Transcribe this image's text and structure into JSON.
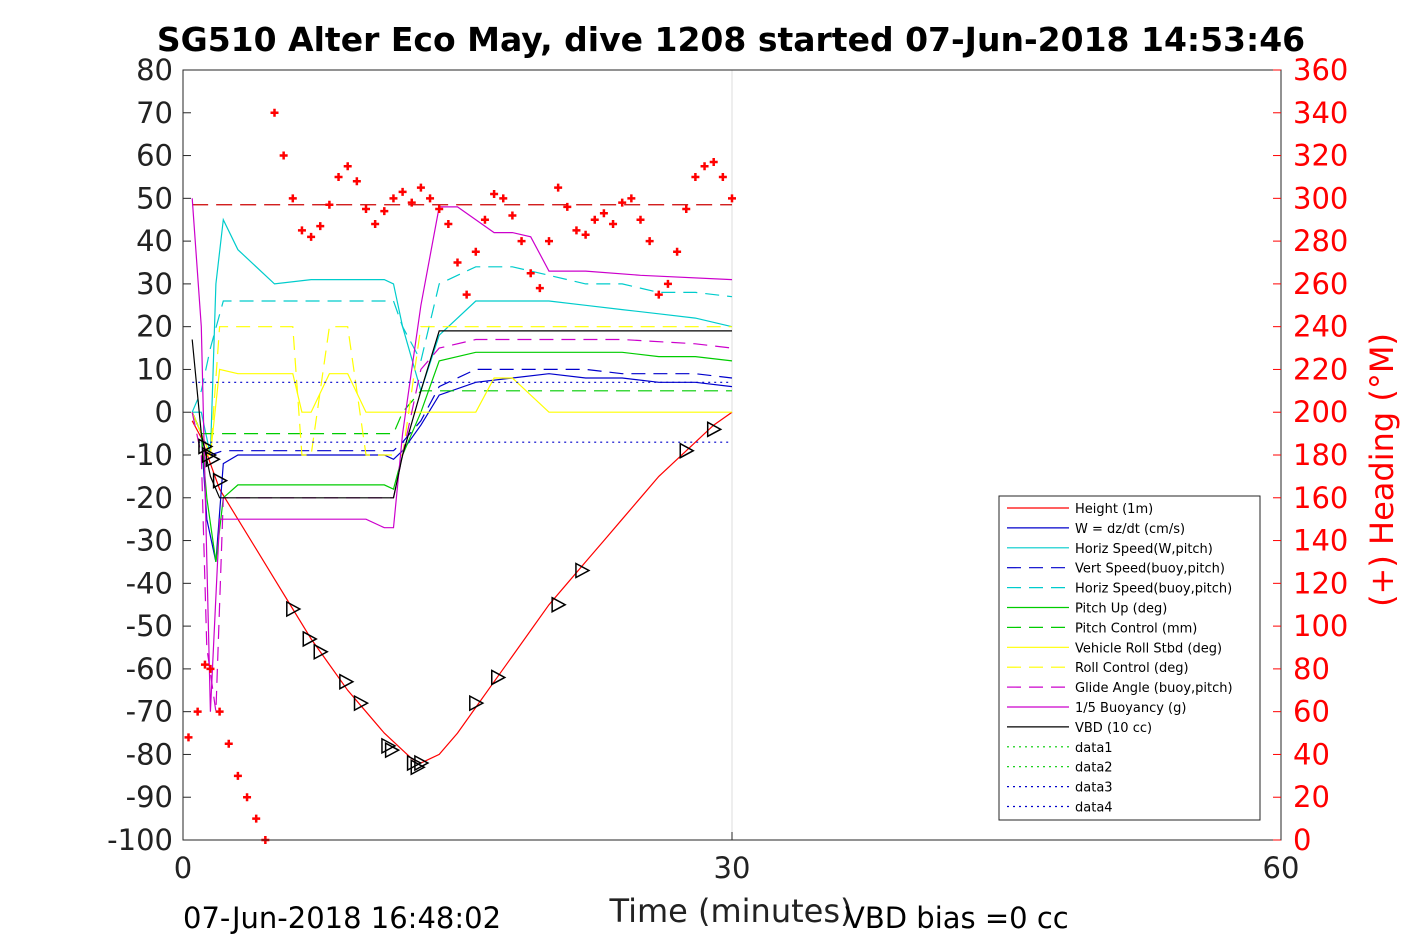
{
  "chart_data": {
    "type": "line",
    "title": "SG510 Alter Eco May, dive 1208 started 07-Jun-2018 14:53:46",
    "xlabel": "Time (minutes)",
    "ylabel_right": "(+) Heading (°M)",
    "xlim": [
      0,
      60
    ],
    "ylim_left": [
      -100,
      80
    ],
    "ylim_right": [
      0,
      360
    ],
    "x_ticks": [
      "0",
      "30",
      "60"
    ],
    "y_ticks_left": [
      "80",
      "70",
      "60",
      "50",
      "40",
      "30",
      "20",
      "10",
      "0",
      "-10",
      "-20",
      "-30",
      "-40",
      "-50",
      "-60",
      "-70",
      "-80",
      "-90",
      "-100"
    ],
    "y_ticks_right": [
      "360",
      "340",
      "320",
      "300",
      "280",
      "260",
      "240",
      "220",
      "200",
      "180",
      "160",
      "140",
      "120",
      "100",
      "80",
      "60",
      "40",
      "20",
      "0"
    ],
    "grid": "x-only at 30",
    "legend_position": "bottom-right",
    "footer_left": "07-Jun-2018 16:48:02",
    "footer_right": "VBD bias =0 cc",
    "series": [
      {
        "name": "Height (1m)",
        "color": "#ff0000",
        "style": "solid",
        "x": [
          0.5,
          1.0,
          1.5,
          2.0,
          3.0,
          4.0,
          5.0,
          6.0,
          7.0,
          8.0,
          9.0,
          10.0,
          11.0,
          12.0,
          12.5,
          13.0,
          13.5,
          14.0,
          15.0,
          16.0,
          17.0,
          18.0,
          19.0,
          20.0,
          21.0,
          22.0,
          23.0,
          24.0,
          25.0,
          26.0,
          27.0,
          28.0,
          29.0,
          30.0
        ],
        "y": [
          -2,
          -6,
          -12,
          -18,
          -25,
          -32,
          -39,
          -46,
          -53,
          -59,
          -65,
          -70,
          -75,
          -79,
          -81,
          -82,
          -81,
          -80,
          -75,
          -69,
          -63,
          -57,
          -51,
          -45,
          -40,
          -35,
          -30,
          -25,
          -20,
          -15,
          -11,
          -7,
          -3,
          0
        ]
      },
      {
        "name": "W = dz/dt (cm/s)",
        "color": "#0000cc",
        "style": "solid",
        "x": [
          0.5,
          1.0,
          1.3,
          1.8,
          2.2,
          3,
          5,
          7,
          9,
          11,
          11.5,
          12,
          13,
          14,
          16,
          18,
          20,
          22,
          24,
          26,
          28,
          30
        ],
        "y": [
          0,
          -5,
          -25,
          -35,
          -12,
          -10,
          -10,
          -10,
          -10,
          -10,
          -11,
          -9,
          -3,
          4,
          7,
          8,
          9,
          8,
          8,
          7,
          7,
          6
        ]
      },
      {
        "name": "Horiz Speed(W,pitch)",
        "color": "#00cccc",
        "style": "solid",
        "x": [
          0.5,
          1.0,
          1.5,
          1.8,
          2.2,
          3,
          5,
          7,
          9,
          11,
          11.5,
          12,
          13,
          14,
          16,
          18,
          20,
          22,
          24,
          26,
          28,
          30
        ],
        "y": [
          0,
          0,
          -10,
          30,
          45,
          38,
          30,
          31,
          31,
          31,
          30,
          20,
          5,
          18,
          26,
          26,
          26,
          25,
          24,
          23,
          22,
          20
        ]
      },
      {
        "name": "Vert Speed(buoy,pitch)",
        "color": "#0000cc",
        "style": "dashed",
        "x": [
          0.5,
          1.0,
          1.5,
          2.2,
          3,
          5,
          7,
          9,
          11,
          11.5,
          12,
          13,
          14,
          16,
          18,
          20,
          22,
          24,
          26,
          28,
          30
        ],
        "y": [
          0,
          -5,
          -10,
          -9,
          -9,
          -9,
          -9,
          -9,
          -9,
          -9,
          -7,
          -2,
          6,
          10,
          10,
          10,
          10,
          9,
          9,
          9,
          8
        ]
      },
      {
        "name": "Horiz Speed(buoy,pitch)",
        "color": "#00cccc",
        "style": "dashed",
        "x": [
          0.5,
          1.0,
          1.5,
          2.2,
          3,
          5,
          7,
          9,
          11,
          11.5,
          12,
          13,
          14,
          16,
          18,
          20,
          22,
          24,
          26,
          28,
          30
        ],
        "y": [
          0,
          5,
          15,
          26,
          26,
          26,
          26,
          26,
          26,
          26,
          20,
          12,
          30,
          34,
          34,
          32,
          30,
          30,
          28,
          28,
          27
        ]
      },
      {
        "name": "Pitch Up (deg)",
        "color": "#00cc00",
        "style": "solid",
        "x": [
          0.5,
          1.0,
          1.3,
          1.8,
          2.2,
          3,
          5,
          7,
          9,
          11,
          11.5,
          12,
          13,
          14,
          16,
          18,
          20,
          22,
          24,
          26,
          28,
          30
        ],
        "y": [
          0,
          -5,
          -20,
          -35,
          -20,
          -17,
          -17,
          -17,
          -17,
          -17,
          -18,
          -10,
          0,
          12,
          14,
          14,
          14,
          14,
          14,
          13,
          13,
          12
        ]
      },
      {
        "name": "Pitch Control (mm)",
        "color": "#00cc00",
        "style": "dashed",
        "x": [
          0.5,
          1.0,
          1.5,
          2.2,
          5,
          9,
          11,
          11.5,
          12,
          13,
          14,
          16,
          20,
          24,
          28,
          30
        ],
        "y": [
          0,
          -5,
          -5,
          -5,
          -5,
          -5,
          -5,
          -5,
          0,
          5,
          5,
          5,
          5,
          5,
          5,
          5
        ]
      },
      {
        "name": "Vehicle Roll Stbd (deg)",
        "color": "#ffff00",
        "style": "solid",
        "x": [
          0.5,
          1.0,
          1.5,
          2.0,
          3,
          5,
          6,
          6.5,
          7,
          8,
          9,
          10,
          11,
          11.5,
          12,
          13,
          14,
          16,
          17,
          18,
          20,
          22,
          24,
          26,
          28,
          30
        ],
        "y": [
          0,
          -5,
          -10,
          10,
          9,
          9,
          9,
          0,
          0,
          9,
          9,
          0,
          0,
          0,
          0,
          0,
          0,
          0,
          8,
          8,
          0,
          0,
          0,
          0,
          0,
          0
        ]
      },
      {
        "name": "Roll Control (deg)",
        "color": "#ffff00",
        "style": "dashed",
        "x": [
          0.5,
          1.0,
          1.5,
          2.0,
          3,
          5,
          6,
          6.5,
          7,
          8,
          9,
          10,
          11,
          11.5,
          12,
          13,
          14,
          16,
          17,
          18,
          20,
          22,
          24,
          26,
          28,
          30
        ],
        "y": [
          0,
          -10,
          -10,
          20,
          20,
          20,
          20,
          -10,
          -10,
          20,
          20,
          -10,
          -10,
          -10,
          -10,
          20,
          20,
          20,
          20,
          20,
          20,
          20,
          20,
          20,
          20,
          20
        ]
      },
      {
        "name": "Glide Angle (buoy,pitch)",
        "color": "#cc00cc",
        "style": "dashed",
        "x": [
          0.5,
          1.0,
          1.3,
          1.8,
          2.2,
          5,
          9,
          11,
          11.5,
          12,
          13,
          14,
          16,
          20,
          24,
          28,
          30
        ],
        "y": [
          0,
          -10,
          -55,
          -70,
          -20,
          -20,
          -20,
          -20,
          -20,
          -10,
          10,
          15,
          17,
          17,
          17,
          16,
          15
        ]
      },
      {
        "name": "1/5 Buoyancy (g)",
        "color": "#cc00cc",
        "style": "solid",
        "x": [
          0.5,
          1.0,
          1.5,
          2.0,
          3,
          5,
          9,
          10,
          11,
          11.5,
          12,
          13,
          14,
          15,
          16,
          17,
          18,
          19,
          20,
          22,
          25,
          30
        ],
        "y": [
          50,
          20,
          -70,
          -25,
          -25,
          -25,
          -25,
          -25,
          -27,
          -27,
          -5,
          25,
          48,
          48,
          45,
          42,
          42,
          41,
          33,
          33,
          32,
          31
        ]
      },
      {
        "name": "VBD (10 cc)",
        "color": "#000000",
        "style": "solid",
        "x": [
          0.5,
          1.0,
          1.5,
          2.0,
          3,
          5,
          9,
          11,
          11.5,
          12,
          13,
          14,
          15,
          20,
          25,
          30
        ],
        "y": [
          17,
          -5,
          -15,
          -20,
          -20,
          -20,
          -20,
          -20,
          -20,
          -10,
          5,
          19,
          19,
          19,
          19,
          19
        ]
      },
      {
        "name": "data1",
        "color": "#00cc00",
        "style": "dotted",
        "x": [],
        "y": []
      },
      {
        "name": "data2",
        "color": "#00cc00",
        "style": "dotted",
        "x": [],
        "y": []
      },
      {
        "name": "data3",
        "color": "#0000cc",
        "style": "dotted",
        "x": [
          0.5,
          30
        ],
        "y": [
          7,
          7
        ]
      },
      {
        "name": "data4",
        "color": "#0000cc",
        "style": "dotted",
        "x": [
          0.5,
          30
        ],
        "y": [
          -7,
          -7
        ]
      }
    ],
    "reference_lines": [
      {
        "axis": "right",
        "value": 297,
        "color": "#cc0000",
        "style": "dashed"
      }
    ],
    "heading_markers": {
      "axis": "right",
      "marker": "+",
      "color": "#ff0000",
      "x": [
        0.3,
        0.8,
        1.2,
        1.5,
        2.0,
        2.5,
        3.0,
        3.5,
        4.0,
        4.5,
        5.0,
        5.5,
        6.0,
        6.5,
        7.0,
        7.5,
        8.0,
        8.5,
        9.0,
        9.5,
        10.0,
        10.5,
        11.0,
        11.5,
        12.0,
        12.5,
        13.0,
        13.5,
        14.0,
        14.5,
        15.0,
        15.5,
        16.0,
        16.5,
        17.0,
        17.5,
        18.0,
        18.5,
        19.0,
        19.5,
        20.0,
        20.5,
        21.0,
        21.5,
        22.0,
        22.5,
        23.0,
        23.5,
        24.0,
        24.5,
        25.0,
        25.5,
        26.0,
        26.5,
        27.0,
        27.5,
        28.0,
        28.5,
        29.0,
        29.5,
        30.0
      ],
      "y": [
        48,
        60,
        82,
        80,
        60,
        45,
        30,
        20,
        10,
        0,
        340,
        320,
        300,
        285,
        282,
        287,
        297,
        310,
        315,
        308,
        295,
        288,
        294,
        300,
        303,
        298,
        305,
        300,
        295,
        288,
        270,
        255,
        275,
        290,
        302,
        300,
        292,
        280,
        265,
        258,
        280,
        305,
        296,
        285,
        283,
        290,
        293,
        288,
        298,
        300,
        290,
        280,
        255,
        260,
        275,
        295,
        310,
        315,
        317,
        310,
        300
      ]
    },
    "depth_markers": {
      "marker": "triangle",
      "x": [
        1.2,
        1.4,
        1.6,
        2.0,
        6.0,
        6.9,
        7.5,
        8.9,
        9.7,
        11.2,
        11.4,
        12.6,
        12.8,
        13.0,
        16.0,
        17.2,
        20.5,
        21.8,
        27.5,
        29.0
      ],
      "y": [
        -8,
        -10,
        -11,
        -16,
        -46,
        -53,
        -56,
        -63,
        -68,
        -78,
        -79,
        -82,
        -83,
        -82,
        -68,
        -62,
        -45,
        -37,
        -9,
        -4
      ]
    }
  }
}
